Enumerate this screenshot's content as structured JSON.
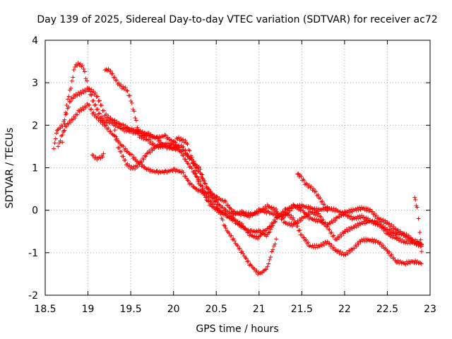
{
  "chart_data": {
    "type": "scatter",
    "title": "Day 139 of 2025, Sidereal Day-to-day VTEC variation (SDTVAR) for receiver ac72",
    "xlabel": "GPS time / hours",
    "ylabel": "SDTVAR / TECUs",
    "xlim": [
      18.5,
      23
    ],
    "ylim": [
      -2,
      4
    ],
    "xticks": [
      "18.5",
      "19",
      "19.5",
      "20",
      "20.5",
      "21",
      "21.5",
      "22",
      "22.5",
      "23"
    ],
    "yticks": [
      "-2",
      "-1",
      "0",
      "1",
      "2",
      "3",
      "4"
    ],
    "grid": true,
    "marker": "+",
    "color": "#ff0000",
    "series": [
      {
        "name": "track-1",
        "x": [
          18.7,
          18.75,
          18.8,
          18.85,
          18.9,
          18.95,
          19.0,
          19.05,
          19.1,
          19.15,
          19.2,
          19.3,
          19.4,
          19.5,
          19.6,
          19.7,
          19.8,
          19.9,
          20.0,
          20.05,
          20.1,
          20.2,
          20.3,
          20.4,
          20.5,
          20.6,
          20.7,
          20.8,
          20.9,
          21.0,
          21.05,
          21.1,
          21.2,
          21.3,
          21.4,
          21.5,
          21.6,
          21.7,
          21.8,
          21.9,
          22.0,
          22.1,
          22.2,
          22.3,
          22.4,
          22.5,
          22.6,
          22.7,
          22.8,
          22.9
        ],
        "y": [
          1.6,
          2.5,
          2.9,
          3.4,
          3.45,
          3.35,
          2.9,
          2.6,
          2.4,
          2.2,
          2.1,
          2.05,
          1.9,
          1.85,
          1.8,
          1.75,
          1.7,
          1.75,
          1.6,
          1.5,
          1.3,
          1.0,
          0.7,
          0.3,
          0.05,
          -0.1,
          -0.2,
          -0.35,
          -0.6,
          -0.65,
          -0.5,
          -0.45,
          -0.2,
          -0.05,
          -0.2,
          -0.6,
          -0.85,
          -0.85,
          -0.75,
          -0.95,
          -1.05,
          -0.9,
          -0.7,
          -0.7,
          -0.75,
          -0.95,
          -1.2,
          -1.25,
          -1.2,
          -1.25
        ]
      },
      {
        "name": "track-2",
        "x": [
          18.65,
          18.7,
          18.75,
          18.8,
          18.85,
          18.9,
          18.95,
          19.0,
          19.05,
          19.1,
          19.15,
          19.2,
          19.3,
          19.4,
          19.5,
          19.6,
          19.7,
          19.8,
          19.9,
          20.0,
          20.1,
          20.2,
          20.3,
          20.4,
          20.5,
          20.6,
          20.7,
          20.8,
          20.9,
          21.0,
          21.1,
          21.2,
          21.3,
          21.4,
          21.5,
          21.6,
          21.7,
          21.8,
          21.9,
          22.0,
          22.1,
          22.2,
          22.3,
          22.4,
          22.5,
          22.6,
          22.7,
          22.8,
          22.9
        ],
        "y": [
          1.9,
          2.0,
          2.3,
          2.6,
          2.7,
          2.75,
          2.8,
          2.85,
          2.8,
          2.7,
          2.5,
          2.25,
          2.1,
          2.0,
          1.9,
          1.85,
          1.8,
          1.7,
          1.5,
          1.45,
          1.4,
          1.2,
          0.9,
          0.5,
          0.2,
          0.0,
          -0.1,
          -0.05,
          -0.1,
          -0.05,
          0.1,
          0.0,
          -0.3,
          -0.35,
          -0.2,
          -0.05,
          -0.1,
          -0.4,
          -0.7,
          -0.5,
          -0.4,
          -0.3,
          -0.25,
          -0.35,
          -0.45,
          -0.55,
          -0.55,
          -0.7,
          -0.8
        ]
      },
      {
        "name": "track-3",
        "x": [
          19.2,
          19.25,
          19.3,
          19.35,
          19.4,
          19.45,
          19.5,
          19.55,
          19.6,
          19.7,
          19.8,
          19.9,
          20.0,
          20.05,
          20.1,
          20.2,
          20.3,
          20.4,
          20.5,
          20.6,
          20.7,
          20.8,
          20.9,
          21.0,
          21.1,
          21.2,
          21.3,
          21.4,
          21.5,
          21.6,
          21.7,
          21.8,
          21.9,
          22.0,
          22.1,
          22.2,
          22.3,
          22.4,
          22.5,
          22.6,
          22.7,
          22.8,
          22.9
        ],
        "y": [
          3.3,
          3.3,
          3.15,
          3.0,
          2.9,
          2.85,
          2.6,
          2.2,
          1.75,
          1.65,
          1.5,
          1.5,
          1.45,
          1.5,
          1.5,
          1.2,
          1.0,
          0.5,
          0.3,
          0.2,
          -0.05,
          -0.1,
          -0.15,
          0.0,
          -0.05,
          -0.1,
          -0.15,
          0.1,
          0.0,
          -0.2,
          -0.25,
          -0.35,
          -0.2,
          -0.05,
          0.0,
          0.05,
          0.0,
          -0.2,
          -0.3,
          -0.45,
          -0.6,
          -0.75,
          -0.85
        ]
      },
      {
        "name": "track-4",
        "x": [
          18.65,
          18.7,
          18.75,
          18.8,
          18.85,
          18.9,
          18.95,
          19.0,
          19.05,
          19.1,
          19.15,
          19.2,
          19.3,
          19.4,
          19.5,
          19.6,
          19.7,
          19.8,
          19.9,
          20.0,
          20.1,
          20.2,
          20.3,
          20.4,
          20.5,
          20.6,
          20.7,
          20.8,
          20.9,
          21.0,
          21.05,
          21.1,
          21.15,
          21.2
        ],
        "y": [
          1.5,
          1.8,
          2.0,
          2.1,
          2.2,
          2.35,
          2.4,
          2.5,
          2.3,
          2.2,
          2.1,
          2.0,
          1.75,
          1.5,
          1.3,
          1.1,
          0.95,
          0.9,
          0.9,
          0.95,
          0.9,
          0.6,
          0.45,
          0.4,
          0.2,
          -0.4,
          -0.7,
          -1.0,
          -1.3,
          -1.5,
          -1.45,
          -1.35,
          -1.0,
          -0.7
        ]
      },
      {
        "name": "track-5",
        "x": [
          19.3,
          19.35,
          19.4,
          19.45,
          19.5,
          19.55,
          19.6,
          19.7,
          19.8,
          19.9,
          20.0,
          20.05,
          20.1,
          20.15,
          20.2,
          20.3,
          20.4,
          20.5,
          20.6,
          20.7,
          20.8,
          20.9,
          21.0,
          21.1,
          21.2,
          21.3,
          21.4,
          21.5,
          21.6,
          21.7,
          21.8,
          21.9,
          22.0,
          22.1,
          22.2,
          22.3,
          22.4,
          22.5,
          22.6,
          22.7,
          22.8,
          22.9
        ],
        "y": [
          2.0,
          1.5,
          1.3,
          1.1,
          1.0,
          1.0,
          1.1,
          1.35,
          1.5,
          1.55,
          1.55,
          1.7,
          1.65,
          1.6,
          1.3,
          0.6,
          0.2,
          0.0,
          -0.1,
          -0.25,
          -0.4,
          -0.5,
          -0.5,
          -0.6,
          -0.2,
          0.0,
          0.1,
          0.1,
          0.05,
          0.0,
          0.05,
          0.0,
          -0.1,
          -0.2,
          -0.15,
          -0.25,
          -0.3,
          -0.55,
          -0.65,
          -0.75,
          -0.75,
          -0.8
        ]
      },
      {
        "name": "fragments",
        "x": [
          18.6,
          18.62,
          18.64,
          19.05,
          19.08,
          19.12,
          19.15,
          19.18,
          21.45,
          21.48,
          21.52,
          21.55,
          21.6,
          21.65,
          21.7,
          21.75,
          21.8,
          22.82,
          22.85,
          22.88,
          22.9
        ],
        "y": [
          1.45,
          1.7,
          1.9,
          1.3,
          1.25,
          1.2,
          1.25,
          1.3,
          0.85,
          0.8,
          0.7,
          0.6,
          0.55,
          0.45,
          0.3,
          0.15,
          0.0,
          0.3,
          0.05,
          -0.5,
          -0.95
        ]
      }
    ]
  }
}
